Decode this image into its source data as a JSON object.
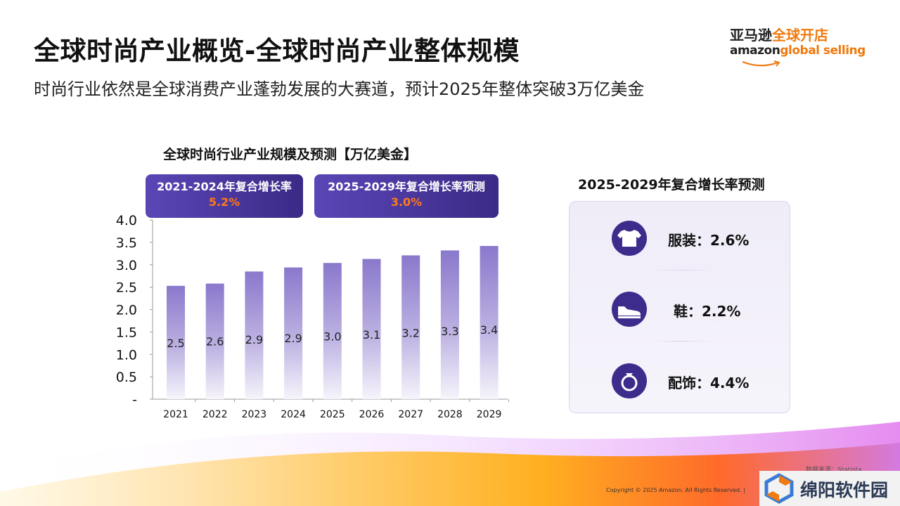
{
  "header": {
    "title": "全球时尚产业概览-全球时尚产业整体规模",
    "subtitle": "时尚行业依然是全球消费产业蓬勃发展的大赛道，预计2025年整体突破3万亿美金"
  },
  "logo": {
    "cn_part1": "亚马逊",
    "cn_part2": "全球开店",
    "en_part1": "amazon",
    "en_part2": "global selling"
  },
  "cagr_boxes": [
    {
      "label": "2021-2024年复合增长率",
      "value": "5.2%"
    },
    {
      "label": "2025-2029年复合增长率预测",
      "value": "3.0%"
    }
  ],
  "right_panel": {
    "title": "2025-2029年复合增长率预测",
    "items": [
      {
        "icon": "tshirt-icon",
        "label": "服装：2.6%"
      },
      {
        "icon": "shoe-icon",
        "label": "鞋：2.2%"
      },
      {
        "icon": "ring-icon",
        "label": "配饰：4.4%"
      }
    ]
  },
  "footer": {
    "source": "数据来源：Statista",
    "copyright": "Copyright © 2025 Amazon. All Rights Reserved.  |",
    "watermark": "绵阳软件园"
  },
  "colors": {
    "bar_top": "#8a78cc",
    "bar_bottom": "#f3f1fa",
    "accent_orange": "#ff7a1a",
    "brand_purple": "#3e2c8c"
  },
  "chart_data": {
    "type": "bar",
    "title": "全球时尚行业产业规模及预测【万亿美金】",
    "categories": [
      "2021",
      "2022",
      "2023",
      "2024",
      "2025",
      "2026",
      "2027",
      "2028",
      "2029"
    ],
    "values": [
      2.53,
      2.58,
      2.85,
      2.94,
      3.04,
      3.13,
      3.21,
      3.32,
      3.42
    ],
    "data_labels": [
      "2.5",
      "2.6",
      "2.9",
      "2.9",
      "3.0",
      "3.1",
      "3.2",
      "3.3",
      "3.4"
    ],
    "y_ticks": [
      "-",
      "0.5",
      "1.0",
      "1.5",
      "2.0",
      "2.5",
      "3.0",
      "3.5",
      "4.0"
    ],
    "ylim": [
      0,
      4.0
    ],
    "grid": false,
    "legend": "none"
  }
}
